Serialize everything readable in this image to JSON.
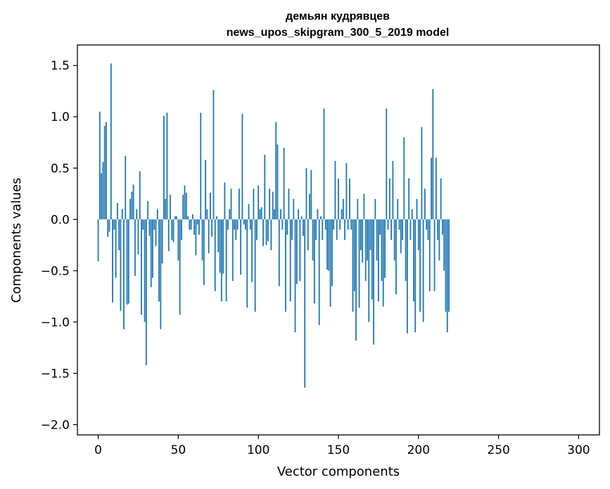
{
  "chart_data": {
    "type": "bar",
    "title": "демьян кудрявцев",
    "subtitle": "news_upos_skipgram_300_5_2019 model",
    "xlabel": "Vector components",
    "ylabel": "Components values",
    "xlim": [
      -13,
      313
    ],
    "ylim": [
      -2.1,
      1.7
    ],
    "xticks": [
      0,
      50,
      100,
      150,
      200,
      250,
      300
    ],
    "xtick_labels": [
      "0",
      "50",
      "100",
      "150",
      "200",
      "250",
      "300"
    ],
    "yticks": [
      1.5,
      1.0,
      0.5,
      0.0,
      -0.5,
      -1.0,
      -1.5,
      -2.0
    ],
    "ytick_labels": [
      "1.5",
      "1.0",
      "0.5",
      "0.0",
      "−0.5",
      "−1.0",
      "−1.5",
      "−2.0"
    ],
    "bar_color": "#1f77b4",
    "grid": false,
    "values": [
      -0.41,
      1.05,
      0.45,
      0.56,
      0.91,
      0.95,
      -0.17,
      -0.12,
      1.52,
      -0.81,
      -0.1,
      -0.57,
      0.16,
      -0.3,
      -0.89,
      0.1,
      -1.07,
      0.62,
      -0.83,
      -0.82,
      0.2,
      0.27,
      0.34,
      -0.55,
      0.1,
      -0.34,
      0.47,
      -0.93,
      -0.1,
      -1.0,
      -1.42,
      0.18,
      -0.16,
      -0.66,
      -0.57,
      -0.1,
      -0.26,
      0.1,
      -0.8,
      -1.07,
      -0.43,
      1.01,
      0.2,
      1.04,
      -0.31,
      0.24,
      -0.2,
      -0.22,
      0.03,
      0.03,
      -0.4,
      -0.93,
      -0.2,
      0.24,
      0.33,
      0.26,
      0.03,
      -0.1,
      -0.1,
      0.05,
      -0.15,
      -0.35,
      -0.05,
      -0.15,
      1.04,
      -0.4,
      -0.64,
      0.58,
      0.1,
      -0.33,
      0.26,
      -0.17,
      1.26,
      -0.7,
      0.03,
      -0.32,
      -0.52,
      -0.8,
      -0.53,
      0.36,
      -0.8,
      -0.1,
      0.1,
      0.3,
      -0.6,
      -0.1,
      -0.2,
      -0.1,
      0.3,
      -0.54,
      1.03,
      -0.05,
      -0.1,
      -0.86,
      0.15,
      -0.1,
      -0.61,
      0.3,
      -0.9,
      -0.2,
      0.33,
      0.1,
      0.12,
      -0.26,
      0.63,
      -0.25,
      -0.21,
      0.3,
      -0.3,
      0.27,
      0.1,
      0.95,
      0.73,
      -0.65,
      0.1,
      -0.1,
      0.7,
      -0.9,
      -0.15,
      0.3,
      -0.8,
      -0.2,
      0.2,
      -1.1,
      -0.63,
      0.1,
      -0.6,
      0.03,
      -0.16,
      -1.64,
      0.5,
      -0.3,
      0.25,
      0.48,
      -0.4,
      -0.82,
      -0.2,
      0.1,
      -1.03,
      0.03,
      -0.2,
      1.08,
      -0.1,
      -0.49,
      -0.5,
      -0.85,
      -0.65,
      -0.1,
      0.57,
      -0.2,
      0.4,
      -0.1,
      0.1,
      0.2,
      -0.2,
      0.55,
      -0.1,
      0.4,
      -0.1,
      -0.9,
      -0.7,
      -1.18,
      0.2,
      -0.86,
      -0.3,
      -0.42,
      0.25,
      -0.6,
      -0.4,
      -1.0,
      -0.3,
      -0.78,
      -1.22,
      0.2,
      -0.4,
      -0.8,
      -0.15,
      -0.6,
      -0.85,
      -0.57,
      1.08,
      -0.1,
      0.4,
      -0.2,
      0.57,
      -0.4,
      -0.73,
      0.2,
      -0.1,
      -0.33,
      -0.2,
      0.8,
      -0.6,
      -1.11,
      0.4,
      -0.2,
      0.1,
      -0.8,
      -1.1,
      0.2,
      -0.3,
      -0.9,
      0.9,
      -1.0,
      0.3,
      -0.1,
      -0.2,
      -0.7,
      0.6,
      1.27,
      -0.7,
      0.6,
      -0.2,
      -0.4,
      0.4,
      -0.15,
      -0.5,
      -0.9,
      -1.1,
      -0.9
    ]
  }
}
